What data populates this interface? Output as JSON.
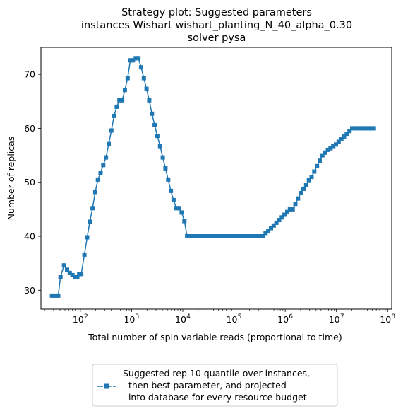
{
  "title_lines": [
    "Strategy plot: Suggested parameters",
    "instances Wishart wishart_planting_N_40_alpha_0.30",
    "solver pysa"
  ],
  "colors": {
    "series": "#1f77b4",
    "axis": "#000000",
    "legend_border": "#cccccc"
  },
  "legend": {
    "placement": "below-plot",
    "marker": "square-marker-line",
    "lines": [
      "Suggested rep 10 quantile over instances,",
      "  then best parameter, and projected",
      "  into database for every resource budget"
    ]
  },
  "chart_data": {
    "type": "line",
    "title": "Strategy plot: Suggested parameters instances Wishart wishart_planting_N_40_alpha_0.30 solver pysa",
    "xlabel": "Total number of spin variable reads (proportional to time)",
    "ylabel": "Number of replicas",
    "xscale": "log",
    "xlim": [
      17,
      120000000
    ],
    "ylim": [
      26.5,
      75
    ],
    "grid": false,
    "x_ticks": [
      {
        "value": 100,
        "base": "10",
        "exp": "2"
      },
      {
        "value": 1000,
        "base": "10",
        "exp": "3"
      },
      {
        "value": 10000,
        "base": "10",
        "exp": "4"
      },
      {
        "value": 100000,
        "base": "10",
        "exp": "5"
      },
      {
        "value": 1000000,
        "base": "10",
        "exp": "6"
      },
      {
        "value": 10000000,
        "base": "10",
        "exp": "7"
      },
      {
        "value": 100000000,
        "base": "10",
        "exp": "8"
      }
    ],
    "y_ticks": [
      30,
      40,
      50,
      60,
      70
    ],
    "series": [
      {
        "name": "Suggested rep 10 quantile over instances, then best parameter, and projected into database for every resource budget",
        "x": [
          28,
          32,
          37,
          41,
          48,
          55,
          62,
          70,
          78,
          87,
          95,
          104,
          120,
          136,
          153,
          173,
          195,
          220,
          248,
          280,
          316,
          357,
          403,
          455,
          514,
          580,
          655,
          740,
          836,
          944,
          1066,
          1204,
          1359,
          1535,
          1734,
          1958,
          2211,
          2497,
          2820,
          3185,
          3597,
          4062,
          4588,
          5181,
          5852,
          6609,
          7464,
          8430,
          9520,
          10752,
          12143,
          13714,
          15488,
          17492,
          19755,
          22311,
          25199,
          28459,
          32143,
          36304,
          41000,
          46300,
          52300,
          59100,
          66700,
          75400,
          85100,
          96100,
          108500,
          122600,
          138400,
          156300,
          176600,
          199400,
          225200,
          254300,
          287200,
          324400,
          366300,
          413700,
          467300,
          527700,
          596000,
          673100,
          760200,
          858600,
          969600,
          1095000,
          1237000,
          1397000,
          1577000,
          1781000,
          2012000,
          2272000,
          2566000,
          2898000,
          3273000,
          3697000,
          4175000,
          4715000,
          5325000,
          6014000,
          6792000,
          7671000,
          8663000,
          9784000,
          11050000,
          12480000,
          14090000,
          15920000,
          17980000,
          20300000,
          22930000,
          25900000,
          29250000,
          33030000,
          37310000,
          42130000,
          47590000,
          53740000
        ],
        "y": [
          29,
          29,
          29,
          32.5,
          34.6,
          33.8,
          33.2,
          32.8,
          32.4,
          32.4,
          33,
          33,
          36.6,
          39.8,
          42.7,
          45.2,
          48.2,
          50.5,
          51.8,
          53.2,
          54.6,
          57.1,
          59.6,
          62.3,
          64,
          65.2,
          65.2,
          67.1,
          69.3,
          72.6,
          72.6,
          73,
          73,
          71.3,
          69.3,
          67.3,
          65.2,
          62.7,
          60.6,
          58.6,
          56.7,
          54.6,
          52.6,
          50.5,
          48.4,
          46.7,
          45.2,
          45.2,
          44.4,
          42.8,
          40,
          40,
          40,
          40,
          40,
          40,
          40,
          40,
          40,
          40,
          40,
          40,
          40,
          40,
          40,
          40,
          40,
          40,
          40,
          40,
          40,
          40,
          40,
          40,
          40,
          40,
          40,
          40,
          40,
          40.6,
          41,
          41.5,
          42,
          42.5,
          43,
          43.5,
          44,
          44.5,
          45,
          45,
          46,
          47,
          48,
          48.8,
          49.5,
          50.4,
          51,
          52,
          53,
          54,
          55,
          55.5,
          56,
          56.3,
          56.7,
          57,
          57.5,
          58,
          58.5,
          59,
          59.5,
          60,
          60,
          60,
          60,
          60,
          60,
          60,
          60,
          60
        ]
      }
    ]
  }
}
